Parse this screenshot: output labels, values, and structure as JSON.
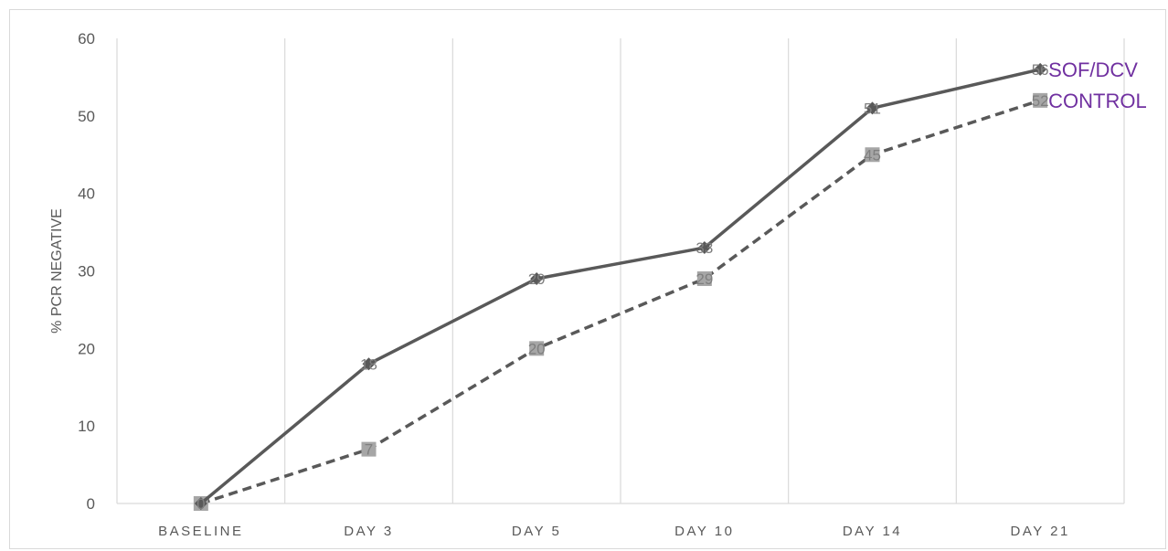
{
  "chart_data": {
    "type": "line",
    "title": "",
    "xlabel": "",
    "ylabel": "% PCR NEGATIVE",
    "categories": [
      "BASELINE",
      "DAY 3",
      "DAY 5",
      "DAY 10",
      "DAY 14",
      "DAY 21"
    ],
    "ylim": [
      0,
      60
    ],
    "yticks": [
      0,
      10,
      20,
      30,
      40,
      50,
      60
    ],
    "grid": "vertical",
    "legend": "end-of-line labels",
    "series": [
      {
        "name": "SOF/DCV",
        "values": [
          0,
          18,
          29,
          33,
          51,
          56
        ],
        "data_labels": [
          "0",
          "18",
          "29",
          "33",
          "51",
          "56"
        ],
        "line_style": "solid",
        "marker": "diamond",
        "color": "#595959",
        "label_color": "#7030a0"
      },
      {
        "name": "CONTROL",
        "values": [
          0,
          7,
          20,
          29,
          45,
          52
        ],
        "data_labels": [
          "0",
          "7",
          "20",
          "29",
          "45",
          "52"
        ],
        "line_style": "dashed",
        "marker": "square",
        "color": "#595959",
        "marker_color": "#a6a6a6",
        "label_color": "#7030a0"
      }
    ]
  }
}
